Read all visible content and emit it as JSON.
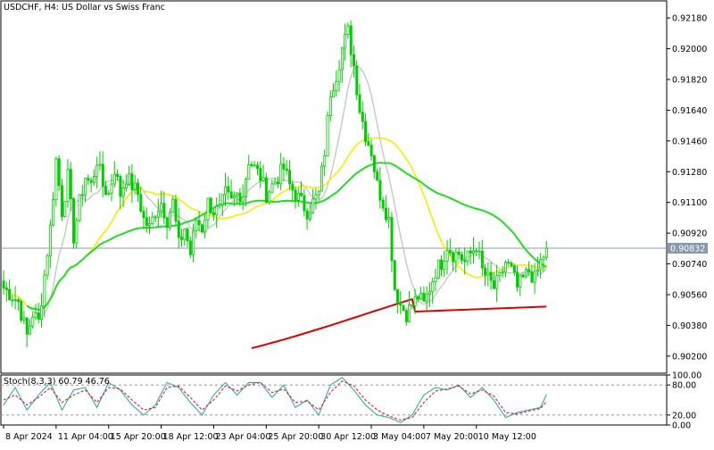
{
  "header": {
    "symbol": "USDCHF",
    "timeframe": "H4",
    "description": "US Dollar vs Swiss Franc",
    "title_text": "USDCHF, H4:  US Dollar vs Swiss Franc"
  },
  "oscillator": {
    "label_text": "Stoch(8,3,3) 60.79 46.76",
    "name": "Stoch(8,3,3)",
    "main_value": "60.79",
    "signal_value": "46.76",
    "axis_labels": [
      "100.00",
      "80.00",
      "20.00",
      "0.00"
    ]
  },
  "price_axis": {
    "labels": [
      "0.92180",
      "0.92000",
      "0.91820",
      "0.91640",
      "0.91460",
      "0.91280",
      "0.91100",
      "0.90920",
      "0.90740",
      "0.90560",
      "0.90380",
      "0.90200"
    ],
    "current_price": "0.90832"
  },
  "time_axis": {
    "labels": [
      "8 Apr 2024",
      "11 Apr 04:00",
      "15 Apr 20:00",
      "18 Apr 12:00",
      "23 Apr 04:00",
      "25 Apr 20:00",
      "30 Apr 12:00",
      "3 May 04:00",
      "7 May 20:00",
      "10 May 12:00"
    ]
  },
  "colors": {
    "bull": "#00cc00",
    "bear": "#00cc00",
    "ma_fast": "#c8c8c8",
    "ma_mid": "#f0f000",
    "ma_slow": "#22dd22",
    "ma_long": "#dd0000",
    "stoch_main": "#33aaaa",
    "stoch_signal": "#dd2222",
    "grid_axis": "#000000",
    "price_line": "#8899aa"
  },
  "chart_data": [
    {
      "type": "candlestick",
      "title": "USDCHF, H4:  US Dollar vs Swiss Franc",
      "ylim": [
        0.901,
        0.9228
      ],
      "y_ticks": [
        0.9218,
        0.92,
        0.9182,
        0.9164,
        0.9146,
        0.9128,
        0.911,
        0.9092,
        0.9074,
        0.9056,
        0.9038,
        0.902
      ],
      "x_ticks": [
        "8 Apr 2024",
        "11 Apr 04:00",
        "15 Apr 20:00",
        "18 Apr 12:00",
        "23 Apr 04:00",
        "25 Apr 20:00",
        "30 Apr 12:00",
        "3 May 04:00",
        "7 May 20:00",
        "10 May 12:00"
      ],
      "current_price": 0.90832,
      "anchors": [
        [
          0,
          0.906
        ],
        [
          5,
          0.9052
        ],
        [
          8,
          0.9032
        ],
        [
          10,
          0.9045
        ],
        [
          12,
          0.904
        ],
        [
          16,
          0.9095
        ],
        [
          18,
          0.9135
        ],
        [
          20,
          0.9105
        ],
        [
          22,
          0.9125
        ],
        [
          24,
          0.909
        ],
        [
          26,
          0.911
        ],
        [
          28,
          0.9125
        ],
        [
          30,
          0.912
        ],
        [
          32,
          0.9135
        ],
        [
          34,
          0.912
        ],
        [
          36,
          0.9115
        ],
        [
          38,
          0.913
        ],
        [
          40,
          0.9115
        ],
        [
          42,
          0.9125
        ],
        [
          44,
          0.912
        ],
        [
          46,
          0.9115
        ],
        [
          48,
          0.91
        ],
        [
          50,
          0.9095
        ],
        [
          52,
          0.9105
        ],
        [
          54,
          0.911
        ],
        [
          56,
          0.91
        ],
        [
          58,
          0.911
        ],
        [
          60,
          0.9085
        ],
        [
          62,
          0.9095
        ],
        [
          64,
          0.908
        ],
        [
          66,
          0.91
        ],
        [
          68,
          0.9095
        ],
        [
          70,
          0.911
        ],
        [
          72,
          0.9105
        ],
        [
          74,
          0.9105
        ],
        [
          76,
          0.9115
        ],
        [
          78,
          0.911
        ],
        [
          80,
          0.9115
        ],
        [
          82,
          0.9115
        ],
        [
          84,
          0.9135
        ],
        [
          86,
          0.913
        ],
        [
          88,
          0.9125
        ],
        [
          90,
          0.9115
        ],
        [
          92,
          0.912
        ],
        [
          94,
          0.9125
        ],
        [
          96,
          0.913
        ],
        [
          98,
          0.912
        ],
        [
          100,
          0.9115
        ],
        [
          102,
          0.911
        ],
        [
          104,
          0.9105
        ],
        [
          106,
          0.911
        ],
        [
          108,
          0.9115
        ],
        [
          110,
          0.914
        ],
        [
          112,
          0.9175
        ],
        [
          114,
          0.9185
        ],
        [
          116,
          0.92
        ],
        [
          118,
          0.921
        ],
        [
          120,
          0.919
        ],
        [
          122,
          0.9165
        ],
        [
          124,
          0.915
        ],
        [
          126,
          0.914
        ],
        [
          128,
          0.912
        ],
        [
          130,
          0.911
        ],
        [
          132,
          0.91
        ],
        [
          134,
          0.906
        ],
        [
          136,
          0.905
        ],
        [
          138,
          0.9045
        ],
        [
          140,
          0.905
        ],
        [
          142,
          0.9055
        ],
        [
          144,
          0.905
        ],
        [
          146,
          0.906
        ],
        [
          148,
          0.907
        ],
        [
          150,
          0.9075
        ],
        [
          152,
          0.9085
        ],
        [
          154,
          0.908
        ],
        [
          156,
          0.908
        ],
        [
          158,
          0.9075
        ],
        [
          160,
          0.908
        ],
        [
          162,
          0.9085
        ],
        [
          164,
          0.907
        ],
        [
          166,
          0.9065
        ],
        [
          168,
          0.906
        ],
        [
          170,
          0.9065
        ],
        [
          172,
          0.9075
        ],
        [
          174,
          0.907
        ],
        [
          176,
          0.906
        ],
        [
          178,
          0.9065
        ],
        [
          180,
          0.907
        ],
        [
          182,
          0.9065
        ],
        [
          184,
          0.9075
        ],
        [
          186,
          0.9083
        ]
      ]
    },
    {
      "type": "line",
      "title": "Stoch(8,3,3) 60.79 46.76",
      "ylim": [
        0,
        100
      ],
      "y_ticks": [
        100,
        80,
        20,
        0
      ],
      "main_anchors": [
        [
          0,
          40
        ],
        [
          4,
          75
        ],
        [
          8,
          30
        ],
        [
          12,
          60
        ],
        [
          16,
          85
        ],
        [
          20,
          30
        ],
        [
          24,
          70
        ],
        [
          28,
          75
        ],
        [
          32,
          35
        ],
        [
          36,
          85
        ],
        [
          40,
          70
        ],
        [
          44,
          40
        ],
        [
          48,
          20
        ],
        [
          52,
          40
        ],
        [
          56,
          85
        ],
        [
          60,
          75
        ],
        [
          64,
          45
        ],
        [
          68,
          20
        ],
        [
          72,
          60
        ],
        [
          76,
          85
        ],
        [
          80,
          60
        ],
        [
          84,
          85
        ],
        [
          88,
          85
        ],
        [
          92,
          55
        ],
        [
          96,
          80
        ],
        [
          100,
          35
        ],
        [
          104,
          50
        ],
        [
          108,
          20
        ],
        [
          112,
          80
        ],
        [
          116,
          95
        ],
        [
          120,
          70
        ],
        [
          124,
          40
        ],
        [
          128,
          20
        ],
        [
          132,
          15
        ],
        [
          136,
          5
        ],
        [
          140,
          20
        ],
        [
          144,
          60
        ],
        [
          148,
          75
        ],
        [
          152,
          70
        ],
        [
          156,
          80
        ],
        [
          160,
          55
        ],
        [
          164,
          75
        ],
        [
          168,
          50
        ],
        [
          172,
          15
        ],
        [
          176,
          25
        ],
        [
          180,
          30
        ],
        [
          184,
          35
        ],
        [
          186,
          61
        ]
      ],
      "signal_anchors": [
        [
          0,
          50
        ],
        [
          4,
          60
        ],
        [
          8,
          40
        ],
        [
          12,
          55
        ],
        [
          16,
          75
        ],
        [
          20,
          45
        ],
        [
          24,
          60
        ],
        [
          28,
          70
        ],
        [
          32,
          45
        ],
        [
          36,
          75
        ],
        [
          40,
          72
        ],
        [
          44,
          50
        ],
        [
          48,
          30
        ],
        [
          52,
          35
        ],
        [
          56,
          75
        ],
        [
          60,
          78
        ],
        [
          64,
          55
        ],
        [
          68,
          30
        ],
        [
          72,
          50
        ],
        [
          76,
          78
        ],
        [
          80,
          68
        ],
        [
          84,
          80
        ],
        [
          88,
          85
        ],
        [
          92,
          65
        ],
        [
          96,
          72
        ],
        [
          100,
          45
        ],
        [
          104,
          48
        ],
        [
          108,
          30
        ],
        [
          112,
          65
        ],
        [
          116,
          88
        ],
        [
          120,
          78
        ],
        [
          124,
          50
        ],
        [
          128,
          30
        ],
        [
          132,
          18
        ],
        [
          136,
          10
        ],
        [
          140,
          15
        ],
        [
          144,
          45
        ],
        [
          148,
          68
        ],
        [
          152,
          72
        ],
        [
          156,
          78
        ],
        [
          160,
          62
        ],
        [
          164,
          70
        ],
        [
          168,
          58
        ],
        [
          172,
          25
        ],
        [
          176,
          22
        ],
        [
          180,
          28
        ],
        [
          184,
          33
        ],
        [
          186,
          47
        ]
      ]
    }
  ]
}
